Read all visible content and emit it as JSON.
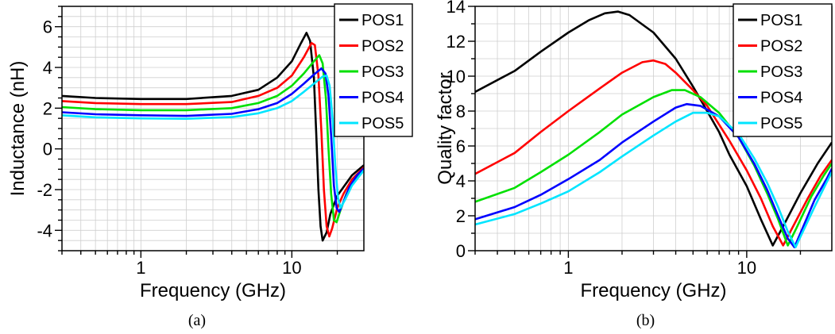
{
  "chart_data": [
    {
      "type": "line",
      "caption": "(a)",
      "xlabel": "Frequency (GHz)",
      "ylabel": "Inductance (nH)",
      "xscale": "log",
      "xlim": [
        0.3,
        30
      ],
      "ylim": [
        -5,
        7
      ],
      "grid": true,
      "legend_position": "top-right",
      "x_ticks": [
        {
          "value": 1,
          "label": "1"
        },
        {
          "value": 10,
          "label": "10"
        }
      ],
      "y_ticks": [
        {
          "value": 6,
          "label": "6"
        },
        {
          "value": 4,
          "label": "4"
        },
        {
          "value": 2,
          "label": "2"
        },
        {
          "value": 0,
          "label": "0"
        },
        {
          "value": -2,
          "label": "-2"
        },
        {
          "value": -4,
          "label": "-4"
        }
      ],
      "series": [
        {
          "name": "POS1",
          "color": "#000000",
          "points": [
            [
              0.3,
              2.6
            ],
            [
              0.5,
              2.5
            ],
            [
              1,
              2.45
            ],
            [
              2,
              2.45
            ],
            [
              4,
              2.6
            ],
            [
              6,
              2.9
            ],
            [
              8,
              3.5
            ],
            [
              10,
              4.3
            ],
            [
              11.5,
              5.2
            ],
            [
              12.5,
              5.7
            ],
            [
              13.2,
              5.3
            ],
            [
              14,
              3.5
            ],
            [
              14.5,
              0.8
            ],
            [
              15,
              -2.0
            ],
            [
              15.5,
              -3.8
            ],
            [
              16,
              -4.5
            ],
            [
              17,
              -4.1
            ],
            [
              18,
              -3.2
            ],
            [
              20,
              -2.3
            ],
            [
              25,
              -1.3
            ],
            [
              30,
              -0.8
            ]
          ]
        },
        {
          "name": "POS2",
          "color": "#ff0000",
          "points": [
            [
              0.3,
              2.35
            ],
            [
              0.5,
              2.25
            ],
            [
              1,
              2.2
            ],
            [
              2,
              2.2
            ],
            [
              4,
              2.3
            ],
            [
              6,
              2.6
            ],
            [
              8,
              3.0
            ],
            [
              10,
              3.6
            ],
            [
              12,
              4.5
            ],
            [
              13.5,
              5.2
            ],
            [
              14.2,
              5.1
            ],
            [
              15,
              3.6
            ],
            [
              15.7,
              0.8
            ],
            [
              16.3,
              -2.0
            ],
            [
              17,
              -3.8
            ],
            [
              17.7,
              -4.3
            ],
            [
              18.5,
              -3.9
            ],
            [
              20,
              -2.9
            ],
            [
              22,
              -2.2
            ],
            [
              25,
              -1.5
            ],
            [
              30,
              -0.9
            ]
          ]
        },
        {
          "name": "POS3",
          "color": "#00e000",
          "points": [
            [
              0.3,
              2.05
            ],
            [
              0.5,
              1.95
            ],
            [
              1,
              1.9
            ],
            [
              2,
              1.9
            ],
            [
              4,
              2.0
            ],
            [
              6,
              2.25
            ],
            [
              8,
              2.6
            ],
            [
              10,
              3.1
            ],
            [
              12,
              3.7
            ],
            [
              14,
              4.3
            ],
            [
              15.2,
              4.6
            ],
            [
              16,
              4.2
            ],
            [
              16.8,
              2.5
            ],
            [
              17.5,
              0.0
            ],
            [
              18.2,
              -2.2
            ],
            [
              19,
              -3.5
            ],
            [
              19.8,
              -3.6
            ],
            [
              21,
              -3.0
            ],
            [
              23,
              -2.2
            ],
            [
              26,
              -1.5
            ],
            [
              30,
              -0.95
            ]
          ]
        },
        {
          "name": "POS4",
          "color": "#0000ff",
          "points": [
            [
              0.3,
              1.8
            ],
            [
              0.5,
              1.7
            ],
            [
              1,
              1.65
            ],
            [
              2,
              1.62
            ],
            [
              4,
              1.72
            ],
            [
              6,
              1.95
            ],
            [
              8,
              2.25
            ],
            [
              10,
              2.7
            ],
            [
              12,
              3.2
            ],
            [
              14,
              3.65
            ],
            [
              15.7,
              3.95
            ],
            [
              16.7,
              3.7
            ],
            [
              17.5,
              2.6
            ],
            [
              18.3,
              0.4
            ],
            [
              19,
              -1.8
            ],
            [
              19.8,
              -2.9
            ],
            [
              20.6,
              -3.1
            ],
            [
              22,
              -2.6
            ],
            [
              24,
              -1.9
            ],
            [
              27,
              -1.3
            ],
            [
              30,
              -0.95
            ]
          ]
        },
        {
          "name": "POS5",
          "color": "#00e5ff",
          "points": [
            [
              0.3,
              1.65
            ],
            [
              0.5,
              1.55
            ],
            [
              1,
              1.5
            ],
            [
              2,
              1.48
            ],
            [
              4,
              1.56
            ],
            [
              6,
              1.75
            ],
            [
              8,
              2.0
            ],
            [
              10,
              2.35
            ],
            [
              12,
              2.8
            ],
            [
              14,
              3.2
            ],
            [
              16,
              3.55
            ],
            [
              17,
              3.6
            ],
            [
              17.8,
              3.1
            ],
            [
              18.6,
              1.5
            ],
            [
              19.4,
              -0.8
            ],
            [
              20.2,
              -2.4
            ],
            [
              21,
              -2.9
            ],
            [
              22.5,
              -2.5
            ],
            [
              25,
              -1.8
            ],
            [
              30,
              -1.05
            ]
          ]
        }
      ]
    },
    {
      "type": "line",
      "caption": "(b)",
      "xlabel": "Frequency (GHz)",
      "ylabel": "Quality factor",
      "xscale": "log",
      "xlim": [
        0.3,
        30
      ],
      "ylim": [
        0,
        14
      ],
      "grid": true,
      "legend_position": "top-right",
      "x_ticks": [
        {
          "value": 1,
          "label": "1"
        },
        {
          "value": 10,
          "label": "10"
        }
      ],
      "y_ticks": [
        {
          "value": 0,
          "label": "0"
        },
        {
          "value": 2,
          "label": "2"
        },
        {
          "value": 4,
          "label": "4"
        },
        {
          "value": 6,
          "label": "6"
        },
        {
          "value": 8,
          "label": "8"
        },
        {
          "value": 10,
          "label": "10"
        },
        {
          "value": 12,
          "label": "12"
        },
        {
          "value": 14,
          "label": "14"
        }
      ],
      "series": [
        {
          "name": "POS1",
          "color": "#000000",
          "points": [
            [
              0.3,
              9.1
            ],
            [
              0.5,
              10.3
            ],
            [
              0.7,
              11.4
            ],
            [
              1,
              12.5
            ],
            [
              1.3,
              13.2
            ],
            [
              1.6,
              13.6
            ],
            [
              1.9,
              13.7
            ],
            [
              2.2,
              13.5
            ],
            [
              3,
              12.5
            ],
            [
              4,
              11.0
            ],
            [
              5,
              9.4
            ],
            [
              6,
              8.0
            ],
            [
              7,
              6.8
            ],
            [
              8,
              5.5
            ],
            [
              10,
              3.7
            ],
            [
              12,
              1.8
            ],
            [
              14,
              0.3
            ],
            [
              16,
              1.4
            ],
            [
              20,
              3.3
            ],
            [
              25,
              5.0
            ],
            [
              30,
              6.2
            ]
          ]
        },
        {
          "name": "POS2",
          "color": "#ff0000",
          "points": [
            [
              0.3,
              4.4
            ],
            [
              0.5,
              5.6
            ],
            [
              0.7,
              6.8
            ],
            [
              1,
              8.0
            ],
            [
              1.5,
              9.3
            ],
            [
              2,
              10.2
            ],
            [
              2.6,
              10.8
            ],
            [
              3,
              10.9
            ],
            [
              3.5,
              10.7
            ],
            [
              4,
              10.2
            ],
            [
              5,
              9.2
            ],
            [
              6,
              8.3
            ],
            [
              8,
              6.3
            ],
            [
              10,
              4.6
            ],
            [
              12,
              3.0
            ],
            [
              14,
              1.4
            ],
            [
              16,
              0.3
            ],
            [
              18,
              1.3
            ],
            [
              22,
              3.0
            ],
            [
              26,
              4.3
            ],
            [
              30,
              5.2
            ]
          ]
        },
        {
          "name": "POS3",
          "color": "#00e000",
          "points": [
            [
              0.3,
              2.8
            ],
            [
              0.5,
              3.6
            ],
            [
              0.7,
              4.5
            ],
            [
              1,
              5.5
            ],
            [
              1.5,
              6.8
            ],
            [
              2,
              7.8
            ],
            [
              3,
              8.8
            ],
            [
              3.8,
              9.2
            ],
            [
              4.5,
              9.2
            ],
            [
              5.5,
              8.8
            ],
            [
              7,
              7.9
            ],
            [
              9,
              6.5
            ],
            [
              11,
              4.9
            ],
            [
              13,
              3.3
            ],
            [
              15,
              1.8
            ],
            [
              17,
              0.3
            ],
            [
              19,
              1.3
            ],
            [
              23,
              3.1
            ],
            [
              27,
              4.3
            ],
            [
              30,
              5.0
            ]
          ]
        },
        {
          "name": "POS4",
          "color": "#0000ff",
          "points": [
            [
              0.3,
              1.8
            ],
            [
              0.5,
              2.5
            ],
            [
              0.7,
              3.2
            ],
            [
              1,
              4.1
            ],
            [
              1.5,
              5.2
            ],
            [
              2,
              6.2
            ],
            [
              3,
              7.4
            ],
            [
              4,
              8.2
            ],
            [
              4.6,
              8.4
            ],
            [
              5.5,
              8.3
            ],
            [
              7,
              7.7
            ],
            [
              9,
              6.5
            ],
            [
              11,
              5.0
            ],
            [
              13,
              3.5
            ],
            [
              15,
              2.0
            ],
            [
              17,
              0.7
            ],
            [
              18.5,
              0.2
            ],
            [
              20,
              1.0
            ],
            [
              24,
              2.9
            ],
            [
              28,
              4.1
            ],
            [
              30,
              4.7
            ]
          ]
        },
        {
          "name": "POS5",
          "color": "#00e5ff",
          "points": [
            [
              0.3,
              1.5
            ],
            [
              0.5,
              2.1
            ],
            [
              0.7,
              2.7
            ],
            [
              1,
              3.4
            ],
            [
              1.5,
              4.5
            ],
            [
              2,
              5.4
            ],
            [
              3,
              6.6
            ],
            [
              4,
              7.4
            ],
            [
              5,
              7.9
            ],
            [
              6,
              7.9
            ],
            [
              7,
              7.7
            ],
            [
              9,
              6.7
            ],
            [
              11,
              5.3
            ],
            [
              13,
              3.9
            ],
            [
              15,
              2.5
            ],
            [
              17,
              1.1
            ],
            [
              18.8,
              0.2
            ],
            [
              20,
              0.8
            ],
            [
              24,
              2.5
            ],
            [
              28,
              3.9
            ],
            [
              30,
              4.5
            ]
          ]
        }
      ]
    }
  ]
}
